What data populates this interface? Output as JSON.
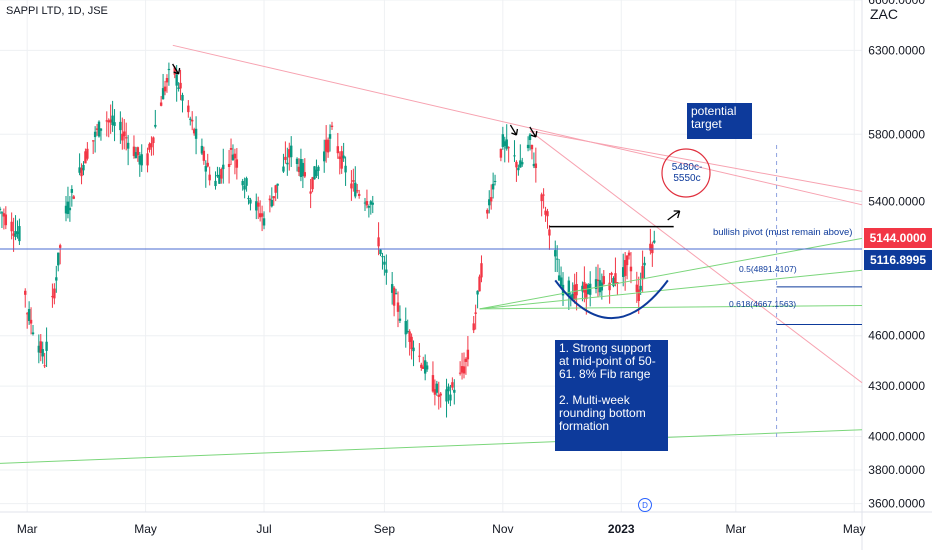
{
  "header": {
    "symbol": "SAPPI LTD, 1D, JSE",
    "currency": "ZAC"
  },
  "chart_data": {
    "type": "candlestick",
    "title": "SAPPI LTD, 1D, JSE",
    "ylim": [
      3550,
      6600
    ],
    "y_ticks": [
      {
        "value": 6600,
        "label": "6600.0000"
      },
      {
        "value": 6300,
        "label": "6300.0000"
      },
      {
        "value": 5800,
        "label": "5800.0000"
      },
      {
        "value": 5400,
        "label": "5400.0000"
      },
      {
        "value": 4600,
        "label": "4600.0000"
      },
      {
        "value": 4300,
        "label": "4300.0000"
      },
      {
        "value": 4000,
        "label": "4000.0000"
      },
      {
        "value": 3800,
        "label": "3800.0000"
      },
      {
        "value": 3600,
        "label": "3600.0000"
      }
    ],
    "x_ticks": [
      {
        "date": "2022-03-01",
        "label": "Mar"
      },
      {
        "date": "2022-05-01",
        "label": "May"
      },
      {
        "date": "2022-07-01",
        "label": "Jul"
      },
      {
        "date": "2022-09-01",
        "label": "Sep"
      },
      {
        "date": "2022-11-01",
        "label": "Nov"
      },
      {
        "date": "2023-01-01",
        "label": "2023",
        "bold": true
      },
      {
        "date": "2023-03-01",
        "label": "Mar"
      },
      {
        "date": "2023-05-01",
        "label": "May"
      }
    ],
    "x_range": [
      "2022-02-15",
      "2023-05-05"
    ],
    "price_path": [
      {
        "date": "2022-02-15",
        "price": 5350
      },
      {
        "date": "2022-02-25",
        "price": 5200
      },
      {
        "date": "2022-03-01",
        "price": 4750
      },
      {
        "date": "2022-03-10",
        "price": 4450
      },
      {
        "date": "2022-03-20",
        "price": 5300
      },
      {
        "date": "2022-04-01",
        "price": 5700
      },
      {
        "date": "2022-04-10",
        "price": 5900
      },
      {
        "date": "2022-04-20",
        "price": 5800
      },
      {
        "date": "2022-05-01",
        "price": 5600
      },
      {
        "date": "2022-05-10",
        "price": 6050
      },
      {
        "date": "2022-05-15",
        "price": 6200
      },
      {
        "date": "2022-05-25",
        "price": 5850
      },
      {
        "date": "2022-06-05",
        "price": 5500
      },
      {
        "date": "2022-06-15",
        "price": 5700
      },
      {
        "date": "2022-06-25",
        "price": 5400
      },
      {
        "date": "2022-07-01",
        "price": 5300
      },
      {
        "date": "2022-07-15",
        "price": 5700
      },
      {
        "date": "2022-07-25",
        "price": 5500
      },
      {
        "date": "2022-08-05",
        "price": 5800
      },
      {
        "date": "2022-08-15",
        "price": 5500
      },
      {
        "date": "2022-08-25",
        "price": 5400
      },
      {
        "date": "2022-09-01",
        "price": 5000
      },
      {
        "date": "2022-09-10",
        "price": 4700
      },
      {
        "date": "2022-09-20",
        "price": 4450
      },
      {
        "date": "2022-10-01",
        "price": 4200
      },
      {
        "date": "2022-10-10",
        "price": 4350
      },
      {
        "date": "2022-10-15",
        "price": 4500
      },
      {
        "date": "2022-10-20",
        "price": 4900
      },
      {
        "date": "2022-10-25",
        "price": 5400
      },
      {
        "date": "2022-11-01",
        "price": 5750
      },
      {
        "date": "2022-11-10",
        "price": 5600
      },
      {
        "date": "2022-11-15",
        "price": 5750
      },
      {
        "date": "2022-11-20",
        "price": 5500
      },
      {
        "date": "2022-11-25",
        "price": 5250
      },
      {
        "date": "2022-12-01",
        "price": 4900
      },
      {
        "date": "2022-12-10",
        "price": 4850
      },
      {
        "date": "2022-12-20",
        "price": 4900
      },
      {
        "date": "2023-01-01",
        "price": 4950
      },
      {
        "date": "2023-01-05",
        "price": 5050
      },
      {
        "date": "2023-01-10",
        "price": 4850
      },
      {
        "date": "2023-01-15",
        "price": 5150
      },
      {
        "date": "2023-01-18",
        "price": 5144
      }
    ],
    "levels": [
      {
        "name": "bullish pivot (must remain above)",
        "value": 5250
      },
      {
        "name": "current price",
        "value": 5144.0,
        "label": "5144.0000"
      },
      {
        "name": "support",
        "value": 5116.8995,
        "label": "5116.8995"
      },
      {
        "name": "Fib 0.5",
        "value": 4891.4107,
        "label": "0.5(4891.4107)"
      },
      {
        "name": "Fib 0.618",
        "value": 4667.1563,
        "label": "0.618(4667.1563)"
      }
    ],
    "annotations": {
      "target": "potential\ntarget",
      "target_range": "5480c-\n5550c",
      "pivot": "bullish pivot (must remain above)",
      "note": "1. Strong support at mid-point of 50-61. 8% Fib range\n\n2. Multi-week rounding bottom formation",
      "event_badge": "D"
    }
  },
  "colors": {
    "up": "#089981",
    "down": "#f23645",
    "trend": "#f7a2b0",
    "support": "#7bd67b",
    "accent": "#0d3a9b",
    "grid": "#eef0f3"
  }
}
